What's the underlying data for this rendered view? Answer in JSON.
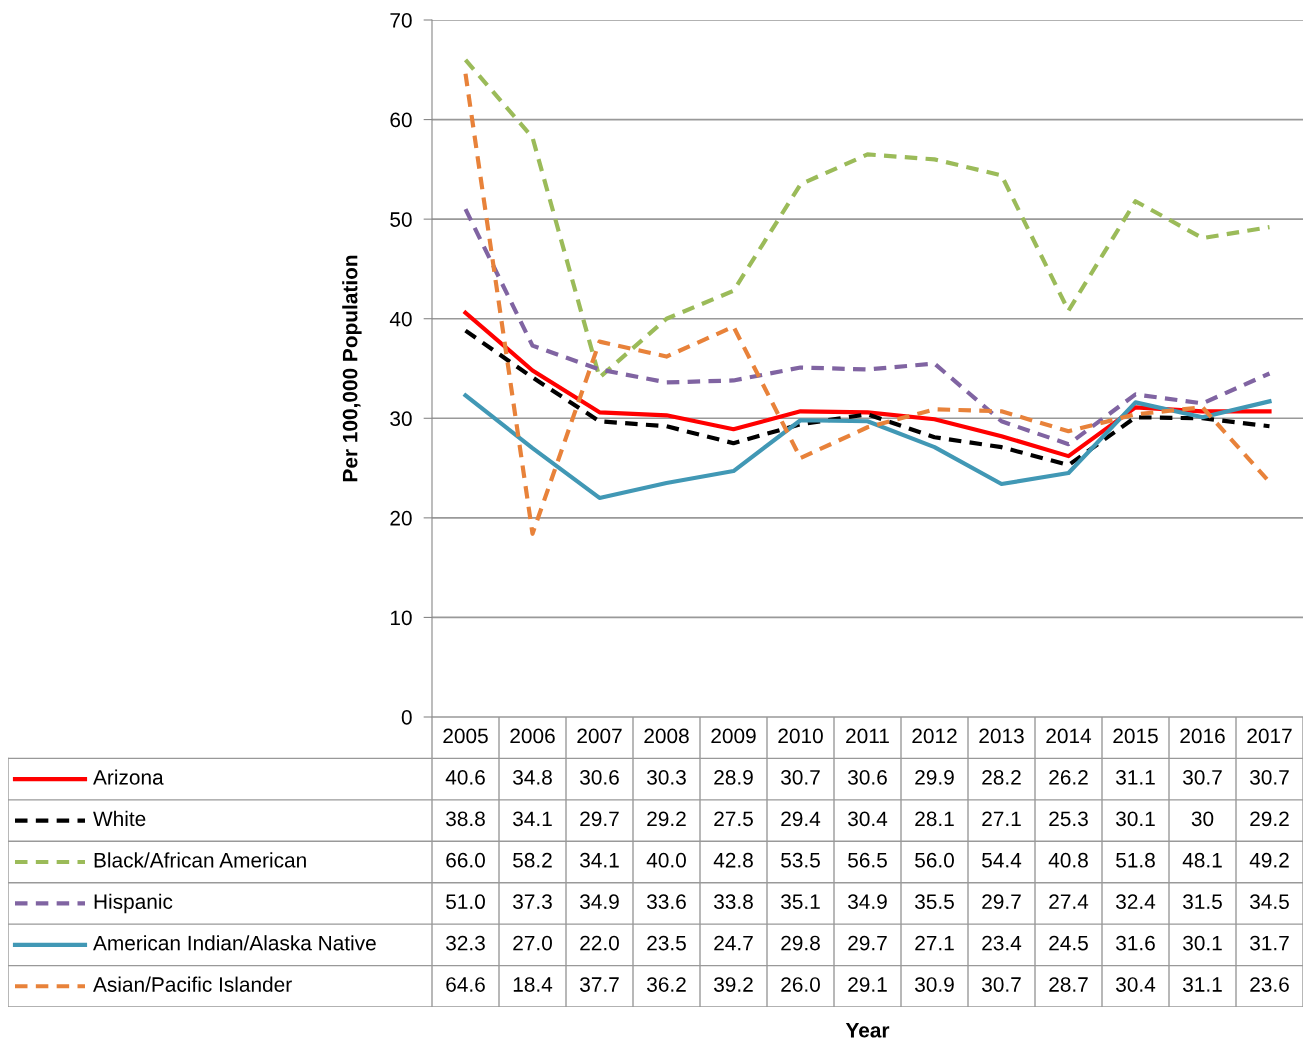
{
  "chart_data": {
    "type": "line",
    "annotations": [
      "Year"
    ],
    "ylabel": "Per 100,000 Population",
    "categories": [
      "2005",
      "2006",
      "2007",
      "2008",
      "2009",
      "2010",
      "2011",
      "2012",
      "2013",
      "2014",
      "2015",
      "2016",
      "2017"
    ],
    "ylim": [
      0,
      70
    ],
    "yticks": [
      0,
      10,
      20,
      30,
      40,
      50,
      60,
      70
    ],
    "grid": "y",
    "legend": "bottom",
    "series": [
      {
        "name": "Arizona",
        "color": "#ff0000",
        "line_style": "solid",
        "values": [
          40.6,
          34.8,
          30.6,
          30.3,
          28.9,
          30.7,
          30.6,
          29.9,
          28.2,
          26.2,
          31.1,
          30.7,
          30.7
        ],
        "value_labels": [
          "40.6",
          "34.8",
          "30.6",
          "30.3",
          "28.9",
          "30.7",
          "30.6",
          "29.9",
          "28.2",
          "26.2",
          "31.1",
          "30.7",
          "30.7"
        ]
      },
      {
        "name": "White",
        "color": "#000000",
        "line_style": "dashed",
        "values": [
          38.8,
          34.1,
          29.7,
          29.2,
          27.5,
          29.4,
          30.4,
          28.1,
          27.1,
          25.3,
          30.1,
          30,
          29.2
        ],
        "value_labels": [
          "38.8",
          "34.1",
          "29.7",
          "29.2",
          "27.5",
          "29.4",
          "30.4",
          "28.1",
          "27.1",
          "25.3",
          "30.1",
          "30",
          "29.2"
        ]
      },
      {
        "name": "Black/African American",
        "color": "#9bbb59",
        "line_style": "dashed",
        "values": [
          66.0,
          58.2,
          34.1,
          40.0,
          42.8,
          53.5,
          56.5,
          56.0,
          54.4,
          40.8,
          51.8,
          48.1,
          49.2
        ],
        "value_labels": [
          "66.0",
          "58.2",
          "34.1",
          "40.0",
          "42.8",
          "53.5",
          "56.5",
          "56.0",
          "54.4",
          "40.8",
          "51.8",
          "48.1",
          "49.2"
        ]
      },
      {
        "name": "Hispanic",
        "color": "#8064a2",
        "line_style": "dashed",
        "values": [
          51.0,
          37.3,
          34.9,
          33.6,
          33.8,
          35.1,
          34.9,
          35.5,
          29.7,
          27.4,
          32.4,
          31.5,
          34.5
        ],
        "value_labels": [
          "51.0",
          "37.3",
          "34.9",
          "33.6",
          "33.8",
          "35.1",
          "34.9",
          "35.5",
          "29.7",
          "27.4",
          "32.4",
          "31.5",
          "34.5"
        ]
      },
      {
        "name": "American Indian/Alaska Native",
        "color": "#4198b5",
        "line_style": "solid",
        "values": [
          32.3,
          27.0,
          22.0,
          23.5,
          24.7,
          29.8,
          29.7,
          27.1,
          23.4,
          24.5,
          31.6,
          30.1,
          31.7
        ],
        "value_labels": [
          "32.3",
          "27.0",
          "22.0",
          "23.5",
          "24.7",
          "29.8",
          "29.7",
          "27.1",
          "23.4",
          "24.5",
          "31.6",
          "30.1",
          "31.7"
        ]
      },
      {
        "name": "Asian/Pacific Islander",
        "color": "#e8823a",
        "line_style": "dashed",
        "values": [
          64.6,
          18.4,
          37.7,
          36.2,
          39.2,
          26.0,
          29.1,
          30.9,
          30.7,
          28.7,
          30.4,
          31.1,
          23.6
        ],
        "value_labels": [
          "64.6",
          "18.4",
          "37.7",
          "36.2",
          "39.2",
          "26.0",
          "29.1",
          "30.9",
          "30.7",
          "28.7",
          "30.4",
          "31.1",
          "23.6"
        ]
      }
    ]
  }
}
